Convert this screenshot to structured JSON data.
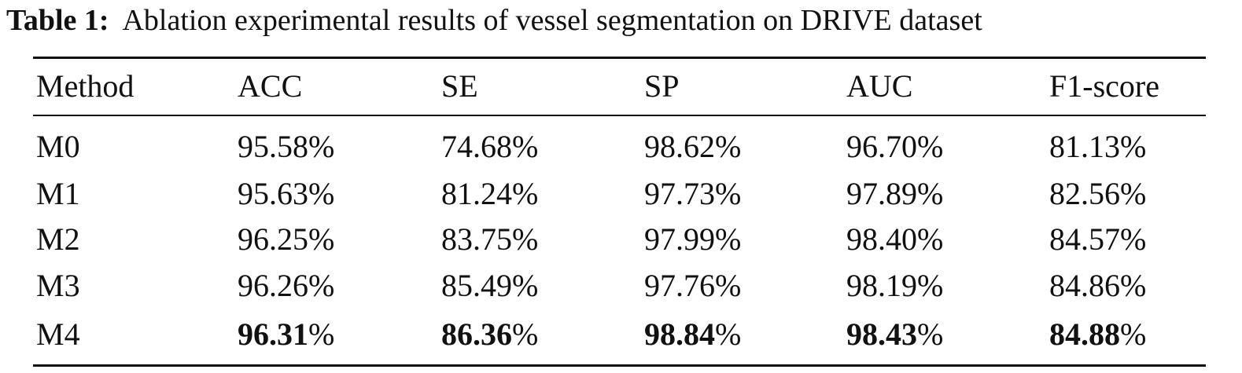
{
  "caption": {
    "label": "Table 1:",
    "text": "Ablation experimental results of vessel segmentation on DRIVE dataset"
  },
  "table": {
    "headers": [
      "Method",
      "ACC",
      "SE",
      "SP",
      "AUC",
      "F1-score"
    ],
    "unit": "%",
    "rows": [
      {
        "method": "M0",
        "values": [
          "95.58",
          "74.68",
          "98.62",
          "96.70",
          "81.13"
        ],
        "bold": false
      },
      {
        "method": "M1",
        "values": [
          "95.63",
          "81.24",
          "97.73",
          "97.89",
          "82.56"
        ],
        "bold": false
      },
      {
        "method": "M2",
        "values": [
          "96.25",
          "83.75",
          "97.99",
          "98.40",
          "84.57"
        ],
        "bold": false
      },
      {
        "method": "M3",
        "values": [
          "96.26",
          "85.49",
          "97.76",
          "98.19",
          "84.86"
        ],
        "bold": false
      },
      {
        "method": "M4",
        "values": [
          "96.31",
          "86.36",
          "98.84",
          "98.43",
          "84.88"
        ],
        "bold": true
      }
    ]
  }
}
